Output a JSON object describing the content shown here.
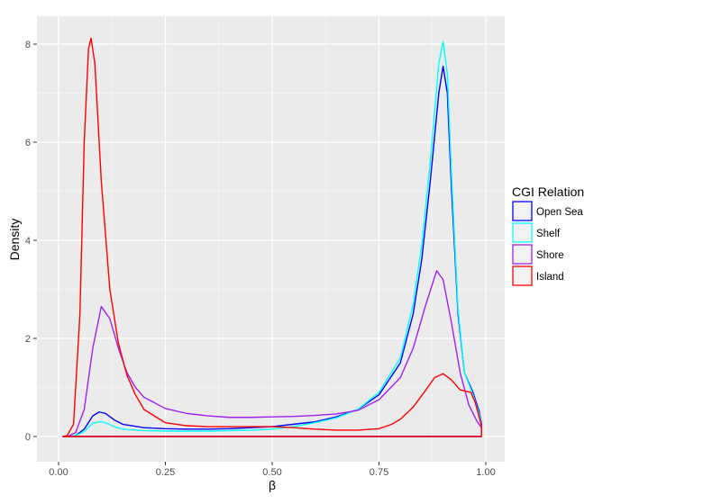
{
  "chart_data": {
    "type": "line",
    "xlabel": "β",
    "ylabel": "Density",
    "xlim": [
      0.0,
      1.0
    ],
    "ylim": [
      0,
      8.5
    ],
    "x_ticks": [
      0.0,
      0.25,
      0.5,
      0.75,
      1.0
    ],
    "x_tick_labels": [
      "0.00",
      "0.25",
      "0.50",
      "0.75",
      "1.00"
    ],
    "y_ticks": [
      0,
      2,
      4,
      6,
      8
    ],
    "y_tick_labels": [
      "0",
      "2",
      "4",
      "6",
      "8"
    ],
    "grid": true,
    "legend": {
      "title": "CGI Relation",
      "placement": "right"
    },
    "series": [
      {
        "name": "Open Sea",
        "color": "#0000ff",
        "points": [
          [
            0.01,
            0
          ],
          [
            0.02,
            0
          ],
          [
            0.04,
            0.02
          ],
          [
            0.06,
            0.15
          ],
          [
            0.08,
            0.42
          ],
          [
            0.095,
            0.5
          ],
          [
            0.11,
            0.47
          ],
          [
            0.13,
            0.34
          ],
          [
            0.15,
            0.25
          ],
          [
            0.2,
            0.18
          ],
          [
            0.25,
            0.16
          ],
          [
            0.3,
            0.15
          ],
          [
            0.35,
            0.15
          ],
          [
            0.4,
            0.16
          ],
          [
            0.45,
            0.18
          ],
          [
            0.5,
            0.2
          ],
          [
            0.55,
            0.25
          ],
          [
            0.6,
            0.3
          ],
          [
            0.65,
            0.4
          ],
          [
            0.7,
            0.55
          ],
          [
            0.75,
            0.85
          ],
          [
            0.8,
            1.5
          ],
          [
            0.83,
            2.5
          ],
          [
            0.85,
            3.6
          ],
          [
            0.87,
            5.2
          ],
          [
            0.89,
            7.0
          ],
          [
            0.9,
            7.55
          ],
          [
            0.91,
            7.0
          ],
          [
            0.92,
            5.0
          ],
          [
            0.935,
            2.5
          ],
          [
            0.95,
            1.3
          ],
          [
            0.97,
            0.9
          ],
          [
            0.985,
            0.5
          ],
          [
            0.99,
            0.25
          ],
          [
            0.99,
            0
          ],
          [
            0.01,
            0
          ]
        ]
      },
      {
        "name": "Shelf",
        "color": "#00ffff",
        "points": [
          [
            0.01,
            0
          ],
          [
            0.02,
            0
          ],
          [
            0.04,
            0.02
          ],
          [
            0.06,
            0.1
          ],
          [
            0.08,
            0.27
          ],
          [
            0.095,
            0.3
          ],
          [
            0.11,
            0.28
          ],
          [
            0.13,
            0.2
          ],
          [
            0.15,
            0.15
          ],
          [
            0.2,
            0.12
          ],
          [
            0.25,
            0.11
          ],
          [
            0.3,
            0.11
          ],
          [
            0.35,
            0.11
          ],
          [
            0.4,
            0.12
          ],
          [
            0.45,
            0.13
          ],
          [
            0.5,
            0.15
          ],
          [
            0.55,
            0.2
          ],
          [
            0.6,
            0.28
          ],
          [
            0.65,
            0.38
          ],
          [
            0.7,
            0.55
          ],
          [
            0.75,
            0.9
          ],
          [
            0.8,
            1.6
          ],
          [
            0.83,
            2.7
          ],
          [
            0.85,
            3.9
          ],
          [
            0.87,
            5.6
          ],
          [
            0.89,
            7.6
          ],
          [
            0.9,
            8.05
          ],
          [
            0.91,
            7.4
          ],
          [
            0.92,
            5.3
          ],
          [
            0.935,
            2.6
          ],
          [
            0.95,
            1.3
          ],
          [
            0.97,
            0.85
          ],
          [
            0.985,
            0.45
          ],
          [
            0.99,
            0.2
          ],
          [
            0.99,
            0
          ],
          [
            0.01,
            0
          ]
        ]
      },
      {
        "name": "Shore",
        "color": "#a020f0",
        "points": [
          [
            0.01,
            0
          ],
          [
            0.02,
            0
          ],
          [
            0.04,
            0.08
          ],
          [
            0.06,
            0.55
          ],
          [
            0.08,
            1.8
          ],
          [
            0.1,
            2.65
          ],
          [
            0.12,
            2.4
          ],
          [
            0.14,
            1.8
          ],
          [
            0.16,
            1.3
          ],
          [
            0.18,
            1.0
          ],
          [
            0.2,
            0.8
          ],
          [
            0.25,
            0.57
          ],
          [
            0.3,
            0.47
          ],
          [
            0.35,
            0.42
          ],
          [
            0.4,
            0.39
          ],
          [
            0.45,
            0.39
          ],
          [
            0.5,
            0.4
          ],
          [
            0.55,
            0.41
          ],
          [
            0.6,
            0.43
          ],
          [
            0.65,
            0.46
          ],
          [
            0.7,
            0.53
          ],
          [
            0.75,
            0.75
          ],
          [
            0.8,
            1.2
          ],
          [
            0.83,
            1.8
          ],
          [
            0.86,
            2.7
          ],
          [
            0.885,
            3.38
          ],
          [
            0.9,
            3.2
          ],
          [
            0.92,
            2.3
          ],
          [
            0.94,
            1.3
          ],
          [
            0.96,
            0.65
          ],
          [
            0.98,
            0.3
          ],
          [
            0.99,
            0.18
          ],
          [
            0.99,
            0
          ],
          [
            0.01,
            0
          ]
        ]
      },
      {
        "name": "Island",
        "color": "#ff0000",
        "points": [
          [
            0.01,
            0
          ],
          [
            0.02,
            0.02
          ],
          [
            0.035,
            0.25
          ],
          [
            0.05,
            2.5
          ],
          [
            0.06,
            6.0
          ],
          [
            0.07,
            7.9
          ],
          [
            0.076,
            8.12
          ],
          [
            0.085,
            7.6
          ],
          [
            0.1,
            5.2
          ],
          [
            0.12,
            3.0
          ],
          [
            0.14,
            1.9
          ],
          [
            0.16,
            1.25
          ],
          [
            0.18,
            0.85
          ],
          [
            0.2,
            0.55
          ],
          [
            0.25,
            0.28
          ],
          [
            0.3,
            0.22
          ],
          [
            0.35,
            0.2
          ],
          [
            0.4,
            0.2
          ],
          [
            0.45,
            0.2
          ],
          [
            0.5,
            0.2
          ],
          [
            0.55,
            0.18
          ],
          [
            0.6,
            0.15
          ],
          [
            0.65,
            0.13
          ],
          [
            0.7,
            0.13
          ],
          [
            0.75,
            0.16
          ],
          [
            0.78,
            0.25
          ],
          [
            0.8,
            0.35
          ],
          [
            0.83,
            0.6
          ],
          [
            0.86,
            0.95
          ],
          [
            0.88,
            1.2
          ],
          [
            0.9,
            1.28
          ],
          [
            0.92,
            1.15
          ],
          [
            0.94,
            0.95
          ],
          [
            0.965,
            0.9
          ],
          [
            0.975,
            0.7
          ],
          [
            0.99,
            0.22
          ],
          [
            0.99,
            0
          ],
          [
            0.01,
            0
          ]
        ]
      }
    ]
  }
}
